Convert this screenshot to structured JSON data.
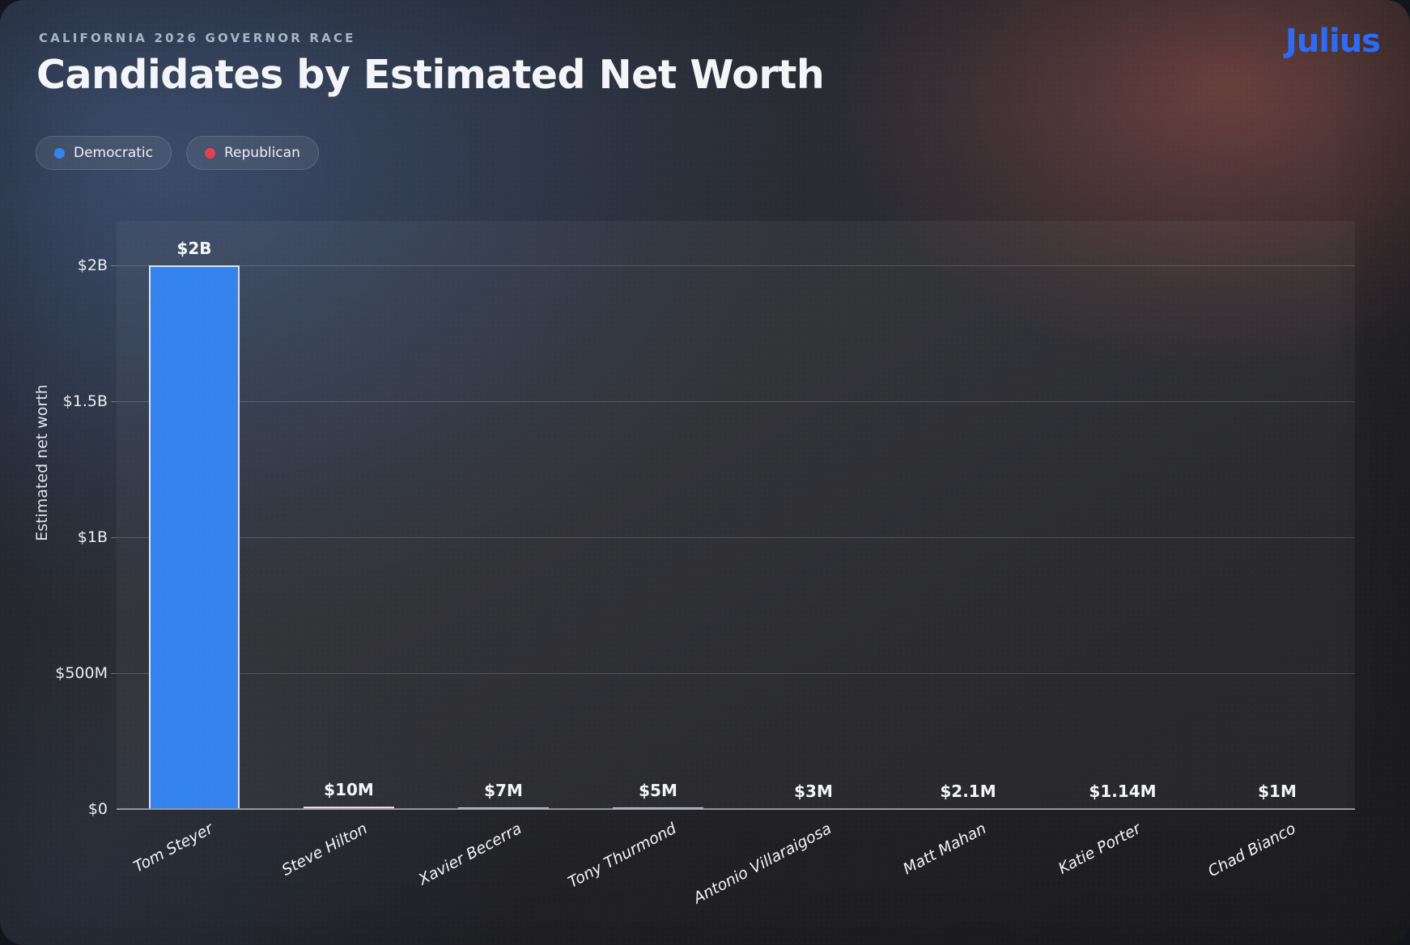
{
  "page": {
    "eyebrow": "CALIFORNIA 2026 GOVERNOR RACE",
    "title": "Candidates by Estimated Net Worth",
    "brand": "Julius"
  },
  "legend": {
    "items": [
      {
        "label": "Democratic",
        "party": "Democratic"
      },
      {
        "label": "Republican",
        "party": "Republican"
      }
    ]
  },
  "colors": {
    "democratic": "#3583ef",
    "republican": "#e5404f",
    "bar_border": "rgba(238,240,245,0.88)",
    "logo_blue": "#2d6bf5"
  },
  "chart_data": {
    "type": "bar",
    "title": "Candidates by Estimated Net Worth",
    "subtitle": "CALIFORNIA 2026 GOVERNOR RACE",
    "xlabel": "",
    "ylabel": "Estimated net worth",
    "ylim": [
      0,
      2000000000
    ],
    "grid": true,
    "legend_position": "top-left",
    "yticks": [
      {
        "value": 0,
        "label": "$0"
      },
      {
        "value": 500000000,
        "label": "$500M"
      },
      {
        "value": 1000000000,
        "label": "$1B"
      },
      {
        "value": 1500000000,
        "label": "$1.5B"
      },
      {
        "value": 2000000000,
        "label": "$2B"
      }
    ],
    "categories": [
      "Tom Steyer",
      "Steve Hilton",
      "Xavier Becerra",
      "Tony Thurmond",
      "Antonio Villaraigosa",
      "Matt Mahan",
      "Katie Porter",
      "Chad Bianco"
    ],
    "values": [
      2000000000,
      10000000,
      7000000,
      5000000,
      3000000,
      2100000,
      1140000,
      1000000
    ],
    "bars": [
      {
        "name": "Tom Steyer",
        "party": "Democratic",
        "value": 2000000000,
        "value_label": "$2B"
      },
      {
        "name": "Steve Hilton",
        "party": "Republican",
        "value": 10000000,
        "value_label": "$10M"
      },
      {
        "name": "Xavier Becerra",
        "party": "Democratic",
        "value": 7000000,
        "value_label": "$7M"
      },
      {
        "name": "Tony Thurmond",
        "party": "Democratic",
        "value": 5000000,
        "value_label": "$5M"
      },
      {
        "name": "Antonio Villaraigosa",
        "party": "Democratic",
        "value": 3000000,
        "value_label": "$3M"
      },
      {
        "name": "Matt Mahan",
        "party": "Democratic",
        "value": 2100000,
        "value_label": "$2.1M"
      },
      {
        "name": "Katie Porter",
        "party": "Democratic",
        "value": 1140000,
        "value_label": "$1.14M"
      },
      {
        "name": "Chad Bianco",
        "party": "Republican",
        "value": 1000000,
        "value_label": "$1M"
      }
    ]
  }
}
